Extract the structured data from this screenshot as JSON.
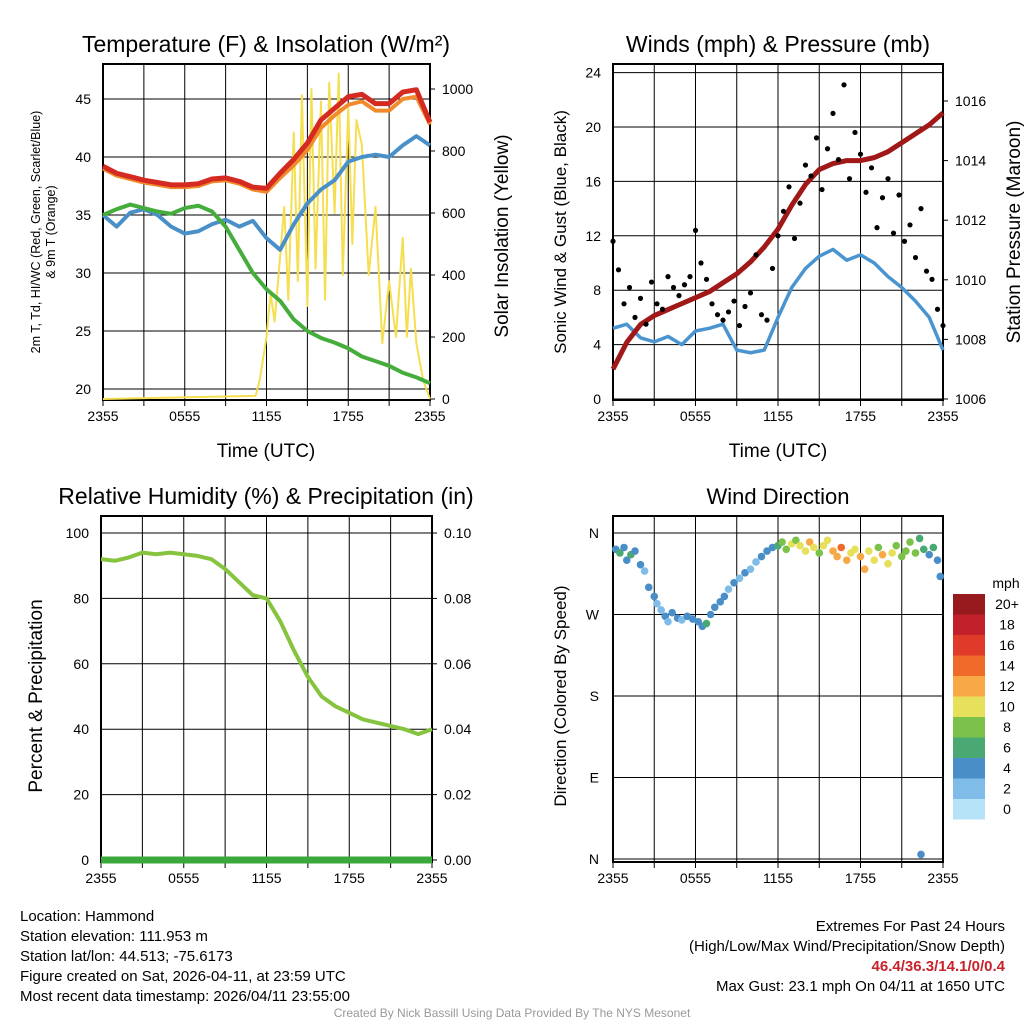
{
  "colors": {
    "temp": "#d42a22",
    "temp9m": "#f08a2a",
    "dew": "#45ad3c",
    "hiwc": "#4a90c8",
    "solar": "#f5df50",
    "wind": "#4a94d0",
    "gust": "#000000",
    "pressure": "#a01818",
    "rh": "#86c440",
    "precip": "#3aa83a"
  },
  "chart_data": [
    {
      "type": "line",
      "title": "Temperature (F) & Insolation (W/m²)",
      "xlabel": "Time (UTC)",
      "ylabel": "2m T, Td, HI/WC (Red, Green, Scarlet/Blue)",
      "ylabel2": "& 9m T (Orange)",
      "y2label": "Solar Insolation (Yellow)",
      "xticks": [
        "2355",
        "0555",
        "1155",
        "1755",
        "2355"
      ],
      "ylim": [
        19,
        47
      ],
      "yticks": [
        20,
        25,
        30,
        35,
        40,
        45
      ],
      "y2lim": [
        0,
        1000
      ],
      "y2ticks": [
        0,
        200,
        400,
        600,
        800,
        1000
      ],
      "x_hours": [
        0,
        1,
        2,
        3,
        4,
        5,
        6,
        7,
        8,
        9,
        10,
        11,
        12,
        13,
        14,
        15,
        16,
        17,
        18,
        19,
        20,
        21,
        22,
        23,
        24
      ],
      "series": [
        {
          "name": "2m T",
          "color": "temp",
          "values": [
            39.2,
            38.6,
            38.3,
            38.0,
            37.8,
            37.6,
            37.6,
            37.7,
            38.1,
            38.2,
            37.9,
            37.4,
            37.3,
            38.6,
            39.8,
            41.2,
            43.2,
            44.2,
            45.2,
            45.4,
            44.6,
            44.6,
            45.6,
            45.8,
            43.0
          ]
        },
        {
          "name": "9m T",
          "color": "temp9m",
          "values": [
            39.0,
            38.4,
            38.1,
            37.8,
            37.6,
            37.4,
            37.4,
            37.5,
            37.9,
            38.0,
            37.7,
            37.2,
            37.0,
            38.2,
            39.3,
            40.6,
            42.5,
            43.6,
            44.5,
            44.8,
            44.0,
            44.0,
            45.0,
            45.2,
            42.8
          ]
        },
        {
          "name": "Td",
          "color": "dew",
          "values": [
            35.0,
            35.5,
            35.9,
            35.6,
            35.3,
            35.1,
            35.6,
            35.8,
            35.3,
            34.0,
            32.0,
            30.0,
            28.6,
            27.6,
            26.0,
            25.0,
            24.4,
            24.0,
            23.5,
            22.8,
            22.4,
            22.0,
            21.4,
            21.0,
            20.5
          ]
        },
        {
          "name": "HI/WC",
          "color": "hiwc",
          "values": [
            35.0,
            34.0,
            35.2,
            35.5,
            35.0,
            34.0,
            33.4,
            33.6,
            34.2,
            34.6,
            34.0,
            34.5,
            33.0,
            32.0,
            34.2,
            36.0,
            37.2,
            38.0,
            39.6,
            40.0,
            40.2,
            40.0,
            41.0,
            41.8,
            41.0
          ]
        }
      ],
      "solar": {
        "x_hours": [
          0,
          11.2,
          11.5,
          12,
          12.3,
          12.6,
          13,
          13.3,
          13.6,
          14,
          14.3,
          14.6,
          15,
          15.3,
          15.6,
          16,
          16.3,
          16.6,
          17,
          17.3,
          17.6,
          18,
          18.3,
          18.6,
          19,
          19.5,
          20,
          20.5,
          21,
          21.5,
          22,
          22.3,
          22.6,
          23,
          23.5,
          24
        ],
        "values": [
          0,
          10,
          60,
          200,
          340,
          250,
          460,
          620,
          320,
          860,
          380,
          980,
          300,
          1000,
          420,
          960,
          320,
          1020,
          600,
          1050,
          400,
          940,
          500,
          900,
          820,
          400,
          620,
          180,
          380,
          200,
          520,
          200,
          420,
          180,
          60,
          0
        ]
      }
    },
    {
      "type": "line",
      "title": "Winds (mph) & Pressure (mb)",
      "xlabel": "Time (UTC)",
      "ylabel": "Sonic Wind & Gust (Blue, Black)",
      "y2label": "Station Pressure (Maroon)",
      "xticks": [
        "2355",
        "0555",
        "1155",
        "1755",
        "2355"
      ],
      "ylim": [
        0,
        24
      ],
      "yticks": [
        0,
        4,
        8,
        12,
        16,
        20,
        24
      ],
      "y2lim": [
        1006,
        1016.3
      ],
      "y2ticks": [
        1006,
        1008,
        1010,
        1012,
        1014,
        1016
      ],
      "x_hours": [
        0,
        1,
        2,
        3,
        4,
        5,
        6,
        7,
        8,
        9,
        10,
        11,
        12,
        13,
        14,
        15,
        16,
        17,
        18,
        19,
        20,
        21,
        22,
        23,
        24
      ],
      "wind": [
        5.2,
        5.5,
        4.5,
        4.2,
        4.6,
        4.0,
        5.0,
        5.2,
        5.5,
        3.6,
        3.4,
        3.6,
        6.0,
        8.2,
        9.6,
        10.5,
        11.0,
        10.2,
        10.6,
        10.0,
        9.0,
        8.2,
        7.2,
        6.0,
        3.6
      ],
      "pressure": [
        1007.0,
        1007.9,
        1008.5,
        1008.8,
        1009.0,
        1009.2,
        1009.4,
        1009.6,
        1009.9,
        1010.2,
        1010.6,
        1011.1,
        1011.7,
        1012.5,
        1013.2,
        1013.7,
        1013.9,
        1014.0,
        1014.0,
        1014.1,
        1014.3,
        1014.6,
        1014.9,
        1015.2,
        1015.6
      ],
      "gust_hours": [
        0,
        0.4,
        0.8,
        1.2,
        1.6,
        2,
        2.4,
        2.8,
        3.2,
        3.6,
        4,
        4.4,
        4.8,
        5.2,
        5.6,
        6,
        6.4,
        6.8,
        7.2,
        7.6,
        8,
        8.4,
        8.8,
        9.2,
        9.6,
        10,
        10.4,
        10.8,
        11.2,
        11.6,
        12,
        12.4,
        12.8,
        13.2,
        13.6,
        14,
        14.4,
        14.8,
        15.2,
        15.6,
        16,
        16.4,
        16.8,
        17.2,
        17.6,
        18,
        18.4,
        18.8,
        19.2,
        19.6,
        20,
        20.4,
        20.8,
        21.2,
        21.6,
        22,
        22.4,
        22.8,
        23.2,
        23.6,
        24
      ],
      "gusts": [
        11.6,
        9.5,
        7.0,
        8.2,
        6.0,
        7.4,
        5.5,
        8.6,
        7.0,
        6.6,
        9.0,
        8.2,
        7.6,
        8.4,
        9.0,
        12.4,
        10.0,
        8.8,
        7.0,
        6.2,
        5.8,
        6.4,
        7.2,
        5.4,
        6.8,
        7.8,
        10.6,
        6.2,
        5.8,
        9.6,
        12.0,
        13.8,
        15.6,
        11.8,
        14.4,
        17.2,
        16.4,
        19.2,
        15.4,
        18.4,
        21.0,
        17.6,
        23.1,
        16.2,
        19.6,
        18.0,
        15.2,
        17.0,
        12.6,
        14.8,
        16.2,
        12.2,
        15.0,
        11.6,
        12.8,
        10.4,
        14.0,
        9.4,
        8.8,
        6.6,
        5.4
      ]
    },
    {
      "type": "line",
      "title": "Relative Humidity (%) & Precipitation (in)",
      "xlabel": "",
      "ylabel": "Percent & Precipitation",
      "xticks": [
        "2355",
        "0555",
        "1155",
        "1755",
        "2355"
      ],
      "ylim": [
        0,
        100
      ],
      "yticks": [
        0,
        20,
        40,
        60,
        80,
        100
      ],
      "y2ticks": [
        "0.00",
        "0.02",
        "0.04",
        "0.06",
        "0.08",
        "0.10"
      ],
      "x_hours": [
        0,
        1,
        2,
        3,
        4,
        5,
        6,
        7,
        8,
        9,
        10,
        11,
        12,
        13,
        14,
        15,
        16,
        17,
        18,
        19,
        20,
        21,
        22,
        23,
        24
      ],
      "rh": [
        92,
        91.5,
        92.5,
        94,
        93.5,
        94,
        93.5,
        93,
        92,
        89,
        85,
        81,
        80,
        73,
        64,
        56,
        50,
        47,
        45,
        43,
        42,
        41,
        40,
        38.5,
        40
      ],
      "precip": [
        0,
        0,
        0,
        0,
        0,
        0,
        0,
        0,
        0,
        0,
        0,
        0,
        0,
        0,
        0,
        0,
        0,
        0,
        0,
        0,
        0,
        0,
        0,
        0,
        0
      ]
    },
    {
      "type": "scatter",
      "title": "Wind Direction",
      "ylabel": "Direction (Colored By Speed)",
      "xticks": [
        "2355",
        "0555",
        "1155",
        "1755",
        "2355"
      ],
      "yticks": [
        "N",
        "W",
        "S",
        "E",
        "N"
      ],
      "ylim": [
        0,
        360
      ],
      "legend": {
        "title": "mph",
        "labels": [
          "0",
          "2",
          "4",
          "6",
          "8",
          "10",
          "12",
          "14",
          "16",
          "18",
          "20+"
        ],
        "colors": [
          "#b5e2f6",
          "#7fbde8",
          "#4a8ec8",
          "#4aa872",
          "#7cc24a",
          "#e6e05a",
          "#f8a845",
          "#f06a2a",
          "#e03a2a",
          "#c2202a",
          "#961a1e"
        ]
      },
      "points": [
        [
          0.2,
          342,
          5
        ],
        [
          0.5,
          338,
          6
        ],
        [
          0.8,
          344,
          5
        ],
        [
          1,
          330,
          4
        ],
        [
          1.3,
          336,
          6
        ],
        [
          1.6,
          340,
          5
        ],
        [
          2,
          325,
          4
        ],
        [
          2.3,
          318,
          3
        ],
        [
          2.6,
          300,
          4
        ],
        [
          3,
          290,
          4
        ],
        [
          3.2,
          282,
          3
        ],
        [
          3.5,
          275,
          2
        ],
        [
          3.8,
          268,
          4
        ],
        [
          4,
          262,
          3
        ],
        [
          4.3,
          272,
          4
        ],
        [
          4.7,
          266,
          4
        ],
        [
          5,
          264,
          3
        ],
        [
          5.4,
          268,
          4
        ],
        [
          5.8,
          265,
          4
        ],
        [
          6.2,
          262,
          4
        ],
        [
          6.5,
          257,
          5
        ],
        [
          6.8,
          260,
          6
        ],
        [
          7.1,
          270,
          5
        ],
        [
          7.4,
          278,
          4
        ],
        [
          7.8,
          284,
          4
        ],
        [
          8.1,
          290,
          4
        ],
        [
          8.4,
          298,
          3
        ],
        [
          8.8,
          305,
          5
        ],
        [
          9.2,
          310,
          3
        ],
        [
          9.6,
          316,
          4
        ],
        [
          10,
          320,
          3
        ],
        [
          10.4,
          328,
          3
        ],
        [
          10.8,
          334,
          4
        ],
        [
          11.2,
          340,
          4
        ],
        [
          11.6,
          344,
          5
        ],
        [
          12,
          346,
          6
        ],
        [
          12.3,
          350,
          8
        ],
        [
          12.6,
          342,
          9
        ],
        [
          13,
          348,
          10
        ],
        [
          13.3,
          352,
          9
        ],
        [
          13.6,
          346,
          11
        ],
        [
          14,
          340,
          10
        ],
        [
          14.3,
          350,
          12
        ],
        [
          14.6,
          344,
          10
        ],
        [
          15,
          338,
          9
        ],
        [
          15.3,
          346,
          11
        ],
        [
          15.6,
          352,
          10
        ],
        [
          16,
          340,
          12
        ],
        [
          16.3,
          334,
          13
        ],
        [
          16.6,
          344,
          14
        ],
        [
          17,
          330,
          12
        ],
        [
          17.3,
          338,
          11
        ],
        [
          17.6,
          342,
          10
        ],
        [
          18,
          334,
          13
        ],
        [
          18.3,
          320,
          12
        ],
        [
          18.6,
          340,
          10
        ],
        [
          19,
          330,
          11
        ],
        [
          19.3,
          344,
          9
        ],
        [
          19.6,
          336,
          12
        ],
        [
          20,
          326,
          10
        ],
        [
          20.3,
          338,
          11
        ],
        [
          20.6,
          346,
          8
        ],
        [
          21,
          334,
          9
        ],
        [
          21.3,
          340,
          8
        ],
        [
          21.6,
          350,
          9
        ],
        [
          22,
          338,
          8
        ],
        [
          22.3,
          354,
          6
        ],
        [
          22.6,
          342,
          7
        ],
        [
          23,
          336,
          5
        ],
        [
          23.3,
          344,
          6
        ],
        [
          23.6,
          330,
          4
        ],
        [
          23.8,
          312,
          4
        ],
        [
          22.4,
          5,
          4
        ]
      ]
    }
  ],
  "info": {
    "location": "Location: Hammond",
    "elevation": "Station elevation: 111.953 m",
    "latlon": "Station lat/lon: 44.513; -75.6173",
    "created": "Figure created on Sat, 2026-04-11, at 23:59 UTC",
    "recent": "Most recent data timestamp: 2026/04/11 23:55:00"
  },
  "extremes": {
    "title": "Extremes For Past 24 Hours",
    "subtitle": "(High/Low/Max Wind/Precipitation/Snow Depth)",
    "values": "46.4/36.3/14.1/0/0.4",
    "max_gust": "Max Gust: 23.1 mph On 04/11 at 1650 UTC"
  },
  "credit": "Created By Nick Bassill Using Data Provided By The NYS Mesonet"
}
